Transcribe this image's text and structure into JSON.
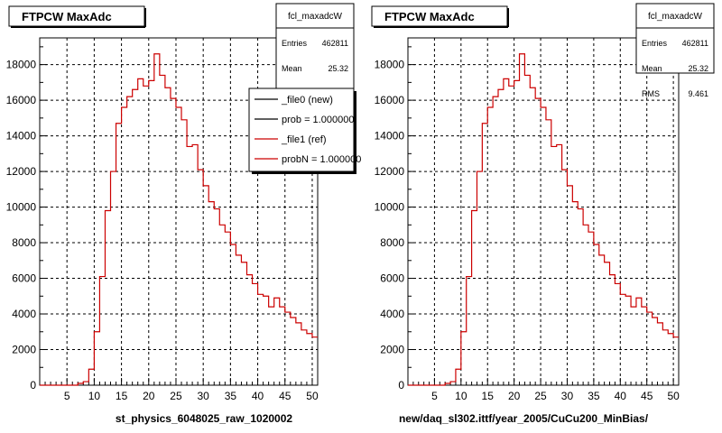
{
  "chart_data": [
    {
      "type": "bar",
      "title": "FTPCW MaxAdc",
      "xlabel": "st_physics_6048025_raw_1020002",
      "ylabel": "",
      "xlim": [
        0,
        51
      ],
      "ylim": [
        0,
        19500
      ],
      "x_ticks": [
        "5",
        "10",
        "15",
        "20",
        "25",
        "30",
        "35",
        "40",
        "45",
        "50"
      ],
      "y_ticks": [
        "0",
        "2000",
        "4000",
        "6000",
        "8000",
        "10000",
        "12000",
        "14000",
        "16000",
        "18000"
      ],
      "grid": true,
      "stats": {
        "name": "fcl_maxadcW",
        "rows": [
          {
            "label": "Entries",
            "value": "462811"
          },
          {
            "label": "Mean",
            "value": "25.32"
          }
        ]
      },
      "legend": {
        "placement": "top-right",
        "entries": [
          {
            "label": "_file0 (new)",
            "color": "#000000"
          },
          {
            "label": "prob = 1.000000",
            "color": "#000000"
          },
          {
            "label": "_file1 (ref)",
            "color": "#cc0000"
          },
          {
            "label": "probN = 1.000000",
            "color": "#cc0000"
          }
        ]
      },
      "series": [
        {
          "color": "#cc0000",
          "bin_lower_edges": [
            0,
            1,
            2,
            3,
            4,
            5,
            6,
            7,
            8,
            9,
            10,
            11,
            12,
            13,
            14,
            15,
            16,
            17,
            18,
            19,
            20,
            21,
            22,
            23,
            24,
            25,
            26,
            27,
            28,
            29,
            30,
            31,
            32,
            33,
            34,
            35,
            36,
            37,
            38,
            39,
            40,
            41,
            42,
            43,
            44,
            45,
            46,
            47,
            48,
            49,
            50
          ],
          "values": [
            0,
            0,
            0,
            0,
            0,
            0,
            0,
            100,
            200,
            900,
            3000,
            6100,
            9800,
            12000,
            14700,
            15600,
            16200,
            16600,
            17200,
            16800,
            17100,
            18600,
            17400,
            16700,
            16100,
            15600,
            14900,
            13400,
            13500,
            12100,
            11200,
            10300,
            9900,
            9000,
            8600,
            7900,
            7300,
            6900,
            6200,
            5700,
            5100,
            5000,
            4400,
            4900,
            4400,
            4100,
            3800,
            3500,
            3100,
            2900,
            2700
          ]
        }
      ]
    },
    {
      "type": "bar",
      "title": "FTPCW MaxAdc",
      "xlabel": "new/daq_sl302.ittf/year_2005/CuCu200_MinBias/",
      "ylabel": "",
      "xlim": [
        0,
        51
      ],
      "ylim": [
        0,
        19500
      ],
      "x_ticks": [
        "5",
        "10",
        "15",
        "20",
        "25",
        "30",
        "35",
        "40",
        "45",
        "50"
      ],
      "y_ticks": [
        "0",
        "2000",
        "4000",
        "6000",
        "8000",
        "10000",
        "12000",
        "14000",
        "16000",
        "18000"
      ],
      "grid": true,
      "stats": {
        "name": "fcl_maxadcW",
        "rows": [
          {
            "label": "Entries",
            "value": "462811"
          },
          {
            "label": "Mean",
            "value": "25.32"
          },
          {
            "label": "RMS",
            "value": "9.461"
          }
        ]
      },
      "series": [
        {
          "color": "#cc0000",
          "bin_lower_edges": [
            0,
            1,
            2,
            3,
            4,
            5,
            6,
            7,
            8,
            9,
            10,
            11,
            12,
            13,
            14,
            15,
            16,
            17,
            18,
            19,
            20,
            21,
            22,
            23,
            24,
            25,
            26,
            27,
            28,
            29,
            30,
            31,
            32,
            33,
            34,
            35,
            36,
            37,
            38,
            39,
            40,
            41,
            42,
            43,
            44,
            45,
            46,
            47,
            48,
            49,
            50
          ],
          "values": [
            0,
            0,
            0,
            0,
            0,
            0,
            0,
            100,
            200,
            900,
            3000,
            6100,
            9800,
            12000,
            14700,
            15600,
            16200,
            16600,
            17200,
            16800,
            17100,
            18600,
            17400,
            16700,
            16100,
            15600,
            14900,
            13400,
            13500,
            12100,
            11200,
            10300,
            9900,
            9000,
            8600,
            7900,
            7300,
            6900,
            6200,
            5700,
            5100,
            5000,
            4400,
            4900,
            4400,
            4100,
            3800,
            3500,
            3100,
            2900,
            2700
          ]
        }
      ]
    }
  ]
}
